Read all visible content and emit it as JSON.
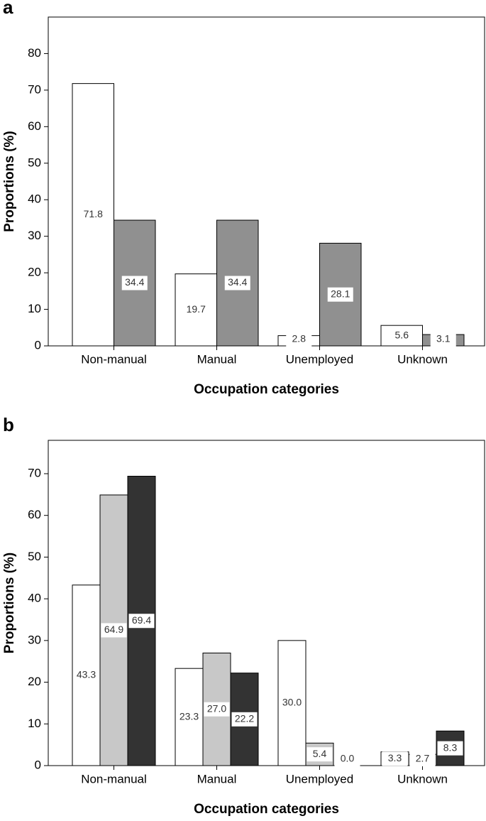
{
  "chart_data": [
    {
      "type": "bar",
      "panel_label": "a",
      "xlabel": "Occupation categories",
      "ylabel": "Proportions (%)",
      "categories": [
        "Non-manual",
        "Manual",
        "Unemployed",
        "Unknown"
      ],
      "series": [
        {
          "color": "#ffffff",
          "values": [
            71.8,
            19.7,
            2.8,
            5.6
          ]
        },
        {
          "color": "#909090",
          "values": [
            34.4,
            34.4,
            28.1,
            3.1
          ]
        }
      ],
      "ylim": [
        0,
        90
      ],
      "yticks": [
        0,
        10,
        20,
        30,
        40,
        50,
        60,
        70,
        80
      ]
    },
    {
      "type": "bar",
      "panel_label": "b",
      "xlabel": "Occupation categories",
      "ylabel": "Proportions (%)",
      "categories": [
        "Non-manual",
        "Manual",
        "Unemployed",
        "Unknown"
      ],
      "series": [
        {
          "color": "#ffffff",
          "values": [
            43.3,
            23.3,
            30,
            3.3
          ],
          "value_labels": [
            "43.3",
            "23.3",
            "30.0",
            "3.3"
          ]
        },
        {
          "color": "#c8c8c8",
          "values": [
            64.9,
            27,
            5.4,
            2.7
          ],
          "value_labels": [
            "64.9",
            "27.0",
            "5.4",
            "2.7"
          ]
        },
        {
          "color": "#333333",
          "values": [
            69.4,
            22.2,
            0,
            8.3
          ],
          "value_labels": [
            "69.4",
            "22.2",
            "0.0",
            "8.3"
          ]
        }
      ],
      "ylim": [
        0,
        78
      ],
      "yticks": [
        0,
        10,
        20,
        30,
        40,
        50,
        60,
        70
      ]
    }
  ]
}
